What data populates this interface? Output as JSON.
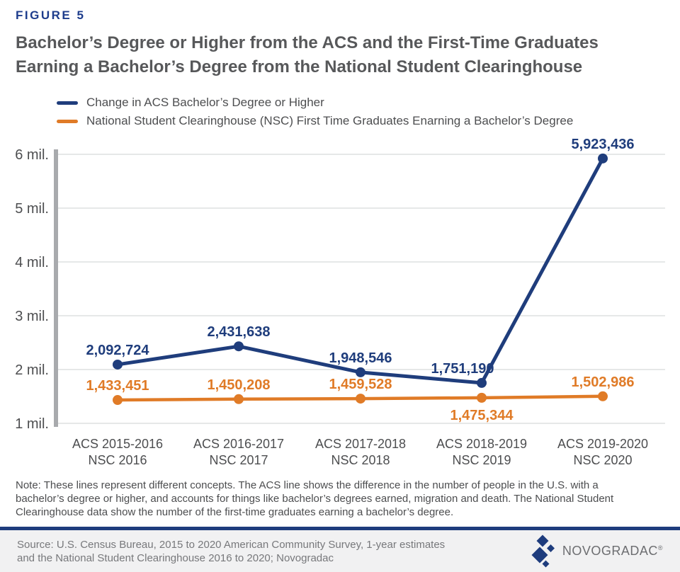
{
  "figure_label": "FIGURE 5",
  "title_lines": [
    "Bachelor’s Degree or Higher from the ACS and the First-Time Graduates",
    "Earning a Bachelor’s Degree from the National Student Clearinghouse"
  ],
  "legend": [
    {
      "label": "Change in ACS Bachelor’s Degree or Higher",
      "color": "#1F3D7C"
    },
    {
      "label": "National Student Clearinghouse (NSC) First Time Graduates Enarning a Bachelor’s Degree",
      "color": "#E07B27"
    }
  ],
  "chart_data": {
    "type": "line",
    "categories": [
      [
        "ACS 2015-2016",
        "NSC 2016"
      ],
      [
        "ACS 2016-2017",
        "NSC 2017"
      ],
      [
        "ACS 2017-2018",
        "NSC 2018"
      ],
      [
        "ACS 2018-2019",
        "NSC 2019"
      ],
      [
        "ACS 2019-2020",
        "NSC 2020"
      ]
    ],
    "series": [
      {
        "name": "Change in ACS Bachelor’s Degree or Higher",
        "color": "#1F3D7C",
        "stroke_width": 5,
        "values": [
          2092724,
          2431638,
          1948546,
          1751190,
          5923436
        ],
        "labels": [
          "2,092,724",
          "2,431,638",
          "1,948,546",
          "1,751,190",
          "5,923,436"
        ],
        "label_side": [
          "above",
          "above",
          "above",
          "above-left",
          "above"
        ]
      },
      {
        "name": "National Student Clearinghouse (NSC) First Time Graduates Enarning a Bachelor’s Degree",
        "color": "#E07B27",
        "stroke_width": 4.5,
        "values": [
          1433451,
          1450208,
          1459528,
          1475344,
          1502986
        ],
        "labels": [
          "1,433,451",
          "1,450,208",
          "1,459,528",
          "1,475,344",
          "1,502,986"
        ],
        "label_side": [
          "above",
          "above",
          "above",
          "below",
          "above"
        ]
      }
    ],
    "ylabel_ticks": [
      "6 mil.",
      "5 mil.",
      "4 mil.",
      "3 mil.",
      "2 mil.",
      "1 mil."
    ],
    "ylim": [
      1000000,
      6000000
    ],
    "grid": true,
    "grid_color": "#D8D9DA",
    "axis_bar_color": "#A8AAAD",
    "tick_color": "#4D4E50",
    "title": "Bachelor’s Degree or Higher from the ACS and the First-Time Graduates Earning a Bachelor’s Degree from the National Student Clearinghouse"
  },
  "note_lines": [
    "Note: These lines represent different concepts. The ACS line shows the difference in the number of people in the U.S. with a",
    "bachelor’s degree or higher, and accounts for things like bachelor’s degrees earned, migration and death. The National Student",
    "Clearinghouse data show the number of the first-time graduates earning a bachelor’s degree."
  ],
  "footer": {
    "source_lines": [
      "Source: U.S. Census Bureau, 2015 to 2020 American Community Survey, 1-year estimates",
      "and the National Student Clearinghouse 2016 to 2020; Novogradac"
    ],
    "logo_text": "NOVOGRADAC",
    "logo_reg": "®"
  },
  "colors": {
    "brand_navy": "#1E3C7D",
    "figure_label_navy": "#1D3C8C",
    "title_gray": "#57585A",
    "text_gray": "#4D4E50",
    "source_gray": "#77787B",
    "footer_bg": "#F1F1F2",
    "acs_line": "#1F3D7C",
    "nsc_line": "#E07B27"
  }
}
